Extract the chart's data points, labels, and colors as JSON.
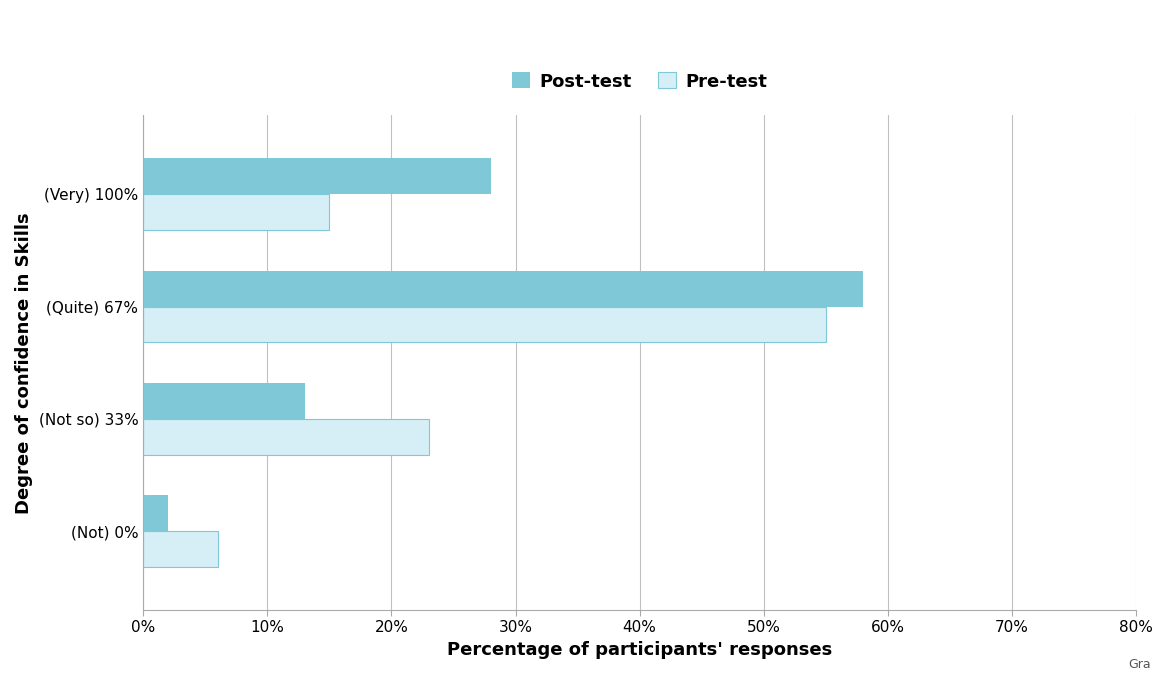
{
  "categories": [
    "(Not) 0%",
    "(Not so) 33%",
    "(Quite) 67%",
    "(Very) 100%"
  ],
  "post_test": [
    2,
    13,
    58,
    28
  ],
  "pre_test": [
    6,
    23,
    55,
    15
  ],
  "post_test_color": "#7ec8d8",
  "pre_test_color": "#d6eef5",
  "pre_test_edge_color": "#7ec8d8",
  "xlabel": "Percentage of participants' responses",
  "ylabel": "Degree of confidence in Skills",
  "xlim": [
    0,
    80
  ],
  "xticks": [
    0,
    10,
    20,
    30,
    40,
    50,
    60,
    70,
    80
  ],
  "xtick_labels": [
    "0%",
    "10%",
    "20%",
    "30%",
    "40%",
    "50%",
    "60%",
    "70%",
    "80%"
  ],
  "legend_labels": [
    "Post-test",
    "Pre-test"
  ],
  "bar_height": 0.32,
  "axis_label_fontsize": 13,
  "tick_fontsize": 11,
  "legend_fontsize": 13,
  "ylabel_fontsize": 13,
  "background_color": "#ffffff",
  "grid_color": "#c0c0c0"
}
